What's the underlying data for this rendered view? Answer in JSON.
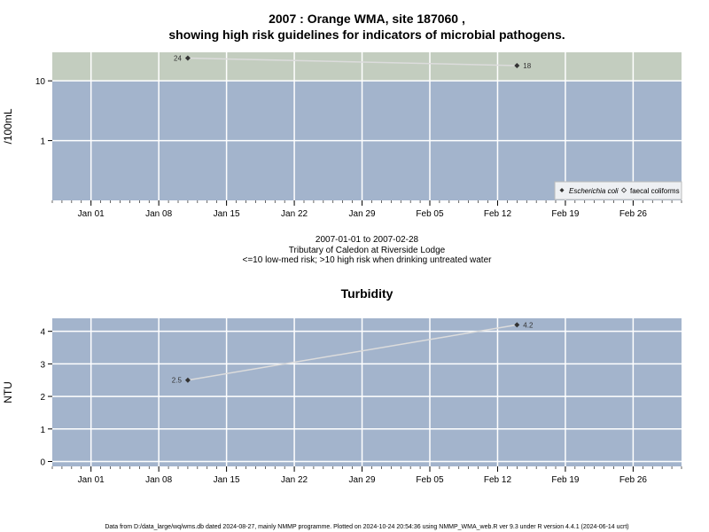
{
  "header": {
    "title_line1": "2007 : Orange WMA, site 187060 ,",
    "title_line2": "showing high risk guidelines for indicators of microbial pathogens."
  },
  "caption": {
    "line1": "2007-01-01 to 2007-02-28",
    "line2": "Tributary of Caledon at Riverside Lodge",
    "line3": "<=10 low-med risk; >10 high risk when drinking untreated water"
  },
  "footer": "Data from D:/data_large/wq/wms.db dated 2024-08-27, mainly NMMP programme. Plotted on 2024-10-24 20:54:36 using NMMP_WMA_web.R ver 9.3 under R version 4.4.1 (2024-06-14 ucrt)",
  "colors": {
    "panel_bg": "#a3b4cc",
    "high_risk_band": "#c3cdbf",
    "grid": "#ffffff",
    "series_line": "#dcdcdc",
    "marker": "#333333"
  },
  "chart_data": [
    {
      "type": "line",
      "title": "",
      "xlabel": "",
      "ylabel": "/100mL",
      "y_scale": "log",
      "ylim": [
        0.1,
        30
      ],
      "xlim": [
        "2006-12-28",
        "2007-03-03"
      ],
      "x_ticks": [
        "Jan 01",
        "Jan 08",
        "Jan 15",
        "Jan 22",
        "Jan 29",
        "Feb 05",
        "Feb 12",
        "Feb 19",
        "Feb 26"
      ],
      "y_ticks": [
        "1",
        "10"
      ],
      "y_tick_values": [
        1,
        10
      ],
      "threshold_band": {
        "from": 10,
        "to": 30
      },
      "grid": true,
      "legend": {
        "position": "bottom-right",
        "entries": [
          "Escherichia coli",
          "faecal coliforms"
        ]
      },
      "series": [
        {
          "name": "Escherichia coli",
          "x": [
            "2007-01-11",
            "2007-02-14"
          ],
          "y": [
            24,
            18
          ],
          "labels": [
            "24",
            "18"
          ]
        }
      ]
    },
    {
      "type": "line",
      "title": "Turbidity",
      "xlabel": "",
      "ylabel": "NTU",
      "ylim": [
        -0.15,
        4.4
      ],
      "xlim": [
        "2006-12-28",
        "2007-03-03"
      ],
      "x_ticks": [
        "Jan 01",
        "Jan 08",
        "Jan 15",
        "Jan 22",
        "Jan 29",
        "Feb 05",
        "Feb 12",
        "Feb 19",
        "Feb 26"
      ],
      "y_ticks": [
        "0",
        "1",
        "2",
        "3",
        "4"
      ],
      "y_tick_values": [
        0,
        1,
        2,
        3,
        4
      ],
      "grid": true,
      "series": [
        {
          "x": [
            "2007-01-11",
            "2007-02-14"
          ],
          "y": [
            2.5,
            4.2
          ],
          "labels": [
            "2.5",
            "4.2"
          ]
        }
      ]
    }
  ]
}
